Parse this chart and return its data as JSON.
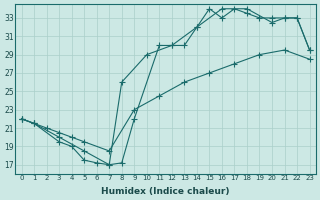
{
  "xlabel": "Humidex (Indice chaleur)",
  "bg_color": "#cce8e4",
  "grid_color": "#aacfca",
  "line_color": "#1a6b6b",
  "xlim": [
    -0.5,
    23.5
  ],
  "ylim": [
    16,
    34.5
  ],
  "xticks": [
    0,
    1,
    2,
    3,
    4,
    5,
    6,
    7,
    8,
    9,
    10,
    11,
    12,
    13,
    14,
    15,
    16,
    17,
    18,
    19,
    20,
    21,
    22,
    23
  ],
  "yticks": [
    17,
    19,
    21,
    23,
    25,
    27,
    29,
    31,
    33
  ],
  "line1_x": [
    0,
    1,
    3,
    5,
    7,
    8,
    9,
    11,
    12,
    13,
    14,
    15,
    16,
    17,
    18,
    19,
    20,
    21,
    22,
    23
  ],
  "line1_y": [
    22,
    21.5,
    20,
    18.5,
    17,
    17.2,
    22,
    30,
    30,
    30,
    32,
    34,
    33,
    34,
    33.5,
    33,
    33,
    33,
    33,
    29.5
  ],
  "line2_x": [
    0,
    1,
    2,
    3,
    4,
    5,
    7,
    9,
    11,
    13,
    15,
    17,
    19,
    21,
    23
  ],
  "line2_y": [
    22,
    21.5,
    21,
    20.5,
    20,
    19.5,
    18.5,
    23,
    24.5,
    26,
    27,
    28,
    29,
    29.5,
    28.5
  ],
  "line3_x": [
    0,
    1,
    3,
    4,
    5,
    6,
    7,
    8,
    10,
    12,
    14,
    16,
    18,
    20,
    21,
    22,
    23
  ],
  "line3_y": [
    22,
    21.5,
    19.5,
    19,
    17.5,
    17.2,
    17,
    26,
    29,
    30,
    32,
    34,
    34,
    32.5,
    33,
    33,
    29.5
  ]
}
